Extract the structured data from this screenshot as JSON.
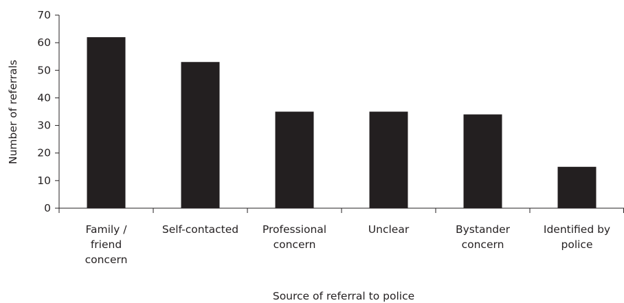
{
  "chart_data": {
    "type": "bar",
    "categories": [
      [
        "Family /",
        "friend",
        "concern"
      ],
      [
        "Self-contacted"
      ],
      [
        "Professional",
        "concern"
      ],
      [
        "Unclear"
      ],
      [
        "Bystander",
        "concern"
      ],
      [
        "Identified by",
        "police"
      ]
    ],
    "values": [
      62,
      53,
      35,
      35,
      34,
      15
    ],
    "xlabel": "Source of referral to police",
    "ylabel": "Number of referrals",
    "ylim": [
      0,
      70
    ],
    "yticks": [
      0,
      10,
      20,
      30,
      40,
      50,
      60,
      70
    ],
    "bar_color": "#231f20",
    "grid": false,
    "legend": "none"
  }
}
